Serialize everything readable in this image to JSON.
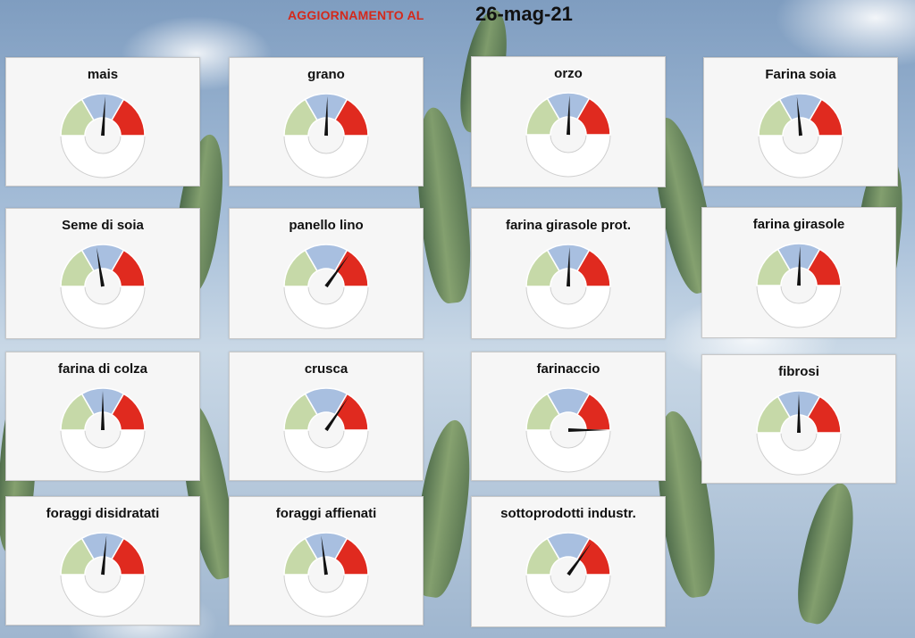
{
  "header": {
    "label": "AGGIORNAMENTO AL",
    "date": "26-mag-21"
  },
  "colors": {
    "low": "#c6d9a8",
    "mid": "#a8bfe0",
    "high": "#e02a1f",
    "needle": "#111111",
    "header_label": "#d4291b"
  },
  "gauges": [
    {
      "title": "mais",
      "needle_fraction": 0.52
    },
    {
      "title": "grano",
      "needle_fraction": 0.51
    },
    {
      "title": "orzo",
      "needle_fraction": 0.51
    },
    {
      "title": "Farina soia",
      "needle_fraction": 0.47
    },
    {
      "title": "Seme di soia",
      "needle_fraction": 0.45
    },
    {
      "title": "panello lino",
      "needle_fraction": 0.7
    },
    {
      "title": "farina girasole prot.",
      "needle_fraction": 0.51
    },
    {
      "title": "farina girasole",
      "needle_fraction": 0.51
    },
    {
      "title": "farina di colza",
      "needle_fraction": 0.5
    },
    {
      "title": "crusca",
      "needle_fraction": 0.69
    },
    {
      "title": "farinaccio",
      "needle_fraction": 1.0
    },
    {
      "title": "fibrosi",
      "needle_fraction": 0.5
    },
    {
      "title": "foraggi disidratati",
      "needle_fraction": 0.53
    },
    {
      "title": "foraggi affienati",
      "needle_fraction": 0.46
    },
    {
      "title": "sottoprodotti industr.",
      "needle_fraction": 0.7
    }
  ]
}
